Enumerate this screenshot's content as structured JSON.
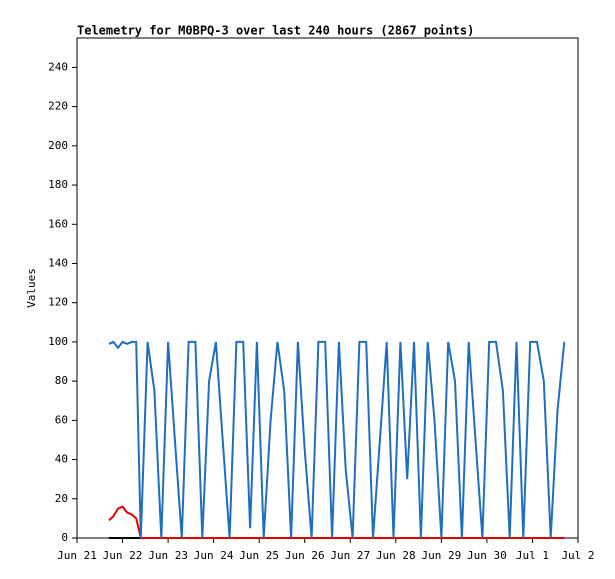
{
  "chart_data": {
    "type": "line",
    "title": "Telemetry for M0BPQ-3 over last 240 hours (2867 points)",
    "y_label": "Values",
    "x": [
      21.7,
      21.8,
      21.9,
      22.0,
      22.1,
      22.2,
      22.3,
      22.4,
      22.55,
      22.7,
      22.85,
      23.0,
      23.15,
      23.3,
      23.45,
      23.6,
      23.75,
      23.9,
      24.05,
      24.2,
      24.35,
      24.5,
      24.65,
      24.8,
      24.95,
      25.1,
      25.25,
      25.4,
      25.55,
      25.7,
      25.85,
      26.0,
      26.15,
      26.3,
      26.45,
      26.6,
      26.75,
      26.9,
      27.05,
      27.2,
      27.35,
      27.5,
      27.65,
      27.8,
      27.95,
      28.1,
      28.25,
      28.4,
      28.55,
      28.7,
      28.85,
      29.0,
      29.15,
      29.3,
      29.45,
      29.6,
      29.75,
      29.9,
      30.05,
      30.2,
      30.35,
      30.5,
      30.65,
      30.8,
      30.95,
      31.1,
      31.25,
      31.4,
      31.55,
      31.7
    ],
    "series": [
      {
        "color": "#000000",
        "values": [
          0,
          0,
          0,
          0,
          0,
          0,
          0,
          0,
          0,
          0,
          0,
          0,
          0,
          0,
          0,
          0,
          0,
          0,
          0,
          0,
          0,
          0,
          0,
          0,
          0,
          0,
          0,
          0,
          0,
          0,
          0,
          0,
          0,
          0,
          0,
          0,
          0,
          0,
          0,
          0,
          0,
          0,
          0,
          0,
          0,
          0,
          0,
          0,
          0,
          0,
          0,
          0,
          0,
          0,
          0,
          0,
          0,
          0,
          0,
          0,
          0,
          0,
          0,
          0,
          0,
          0,
          0,
          0,
          0,
          0
        ]
      },
      {
        "color": "#e00000",
        "values": [
          9,
          11,
          15,
          16,
          13,
          12,
          10,
          0,
          0,
          0,
          0,
          0,
          0,
          0,
          0,
          0,
          0,
          0,
          0,
          0,
          0,
          0,
          0,
          0,
          0,
          0,
          0,
          0,
          0,
          0,
          0,
          0,
          0,
          0,
          0,
          0,
          0,
          0,
          0,
          0,
          0,
          0,
          0,
          0,
          0,
          0,
          0,
          0,
          0,
          0,
          0,
          0,
          0,
          0,
          0,
          0,
          0,
          0,
          0,
          0,
          0,
          0,
          0,
          0,
          0,
          0,
          0,
          0,
          0,
          0
        ]
      },
      {
        "color": "#1f6fc0",
        "values": [
          99,
          100,
          97,
          100,
          99,
          100,
          100,
          0,
          100,
          75,
          0,
          100,
          50,
          0,
          100,
          100,
          0,
          80,
          100,
          50,
          0,
          100,
          100,
          5,
          100,
          0,
          60,
          100,
          75,
          0,
          100,
          45,
          0,
          100,
          100,
          0,
          100,
          35,
          0,
          100,
          100,
          0,
          50,
          100,
          0,
          100,
          30,
          100,
          0,
          100,
          60,
          0,
          100,
          80,
          0,
          100,
          50,
          0,
          100,
          100,
          75,
          0,
          100,
          0,
          100,
          100,
          80,
          0,
          65,
          100
        ]
      }
    ],
    "xlim": [
      21,
      32
    ],
    "xticks": [
      {
        "value": 21,
        "label": "Jun 21"
      },
      {
        "value": 22,
        "label": "Jun 22"
      },
      {
        "value": 23,
        "label": "Jun 23"
      },
      {
        "value": 24,
        "label": "Jun 24"
      },
      {
        "value": 25,
        "label": "Jun 25"
      },
      {
        "value": 26,
        "label": "Jun 26"
      },
      {
        "value": 27,
        "label": "Jun 27"
      },
      {
        "value": 28,
        "label": "Jun 28"
      },
      {
        "value": 29,
        "label": "Jun 29"
      },
      {
        "value": 30,
        "label": "Jun 30"
      },
      {
        "value": 31,
        "label": "Jul 1"
      },
      {
        "value": 32,
        "label": "Jul 2"
      }
    ],
    "ylim": [
      0,
      255
    ],
    "yticks": [
      0,
      20,
      40,
      60,
      80,
      100,
      120,
      140,
      160,
      180,
      200,
      220,
      240
    ]
  }
}
